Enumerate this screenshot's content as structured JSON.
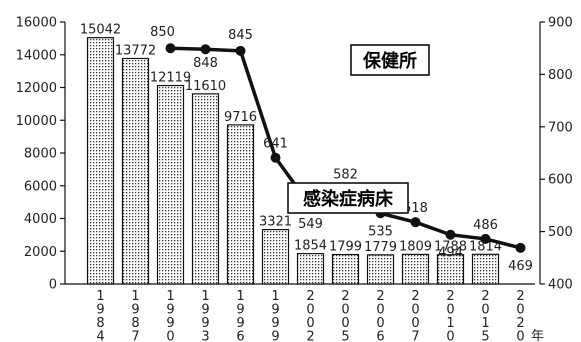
{
  "chart_data": {
    "type": "bar+line",
    "title": "",
    "categories": [
      "1984",
      "1987",
      "1990",
      "1993",
      "1996",
      "1999",
      "2002",
      "2005",
      "2006",
      "2007",
      "2010",
      "2015",
      "2020"
    ],
    "x_unit": "年",
    "series": [
      {
        "name": "感染症病床",
        "type": "bar",
        "axis": "left",
        "values": [
          15042,
          13772,
          12119,
          11610,
          9716,
          3321,
          1854,
          1799,
          1779,
          1809,
          1788,
          1814,
          null
        ]
      },
      {
        "name": "保健所",
        "type": "line",
        "axis": "right",
        "values": [
          null,
          null,
          850,
          848,
          845,
          641,
          549,
          582,
          535,
          518,
          494,
          486,
          469
        ]
      }
    ],
    "y_left": {
      "min": 0,
      "max": 16000,
      "ticks": [
        0,
        2000,
        4000,
        6000,
        8000,
        10000,
        12000,
        14000,
        16000
      ]
    },
    "y_right": {
      "min": 400,
      "max": 900,
      "ticks": [
        400,
        500,
        600,
        700,
        800,
        900
      ]
    },
    "grid": false,
    "labels": {
      "bar_series": "感染症病床",
      "line_series": "保健所"
    }
  }
}
